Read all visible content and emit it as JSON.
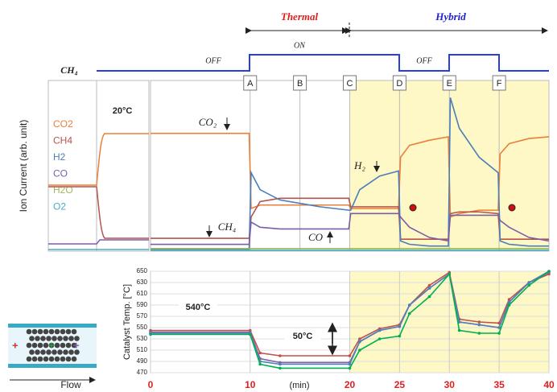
{
  "header": {
    "thermal": "Thermal",
    "hybrid": "Hybrid",
    "ch4_label": "CH₄",
    "ch4_states": [
      "OFF",
      "ON",
      "OFF"
    ]
  },
  "chart_data": [
    {
      "type": "line",
      "y_label": "Ion Current  (arb. unit)",
      "xlim": [
        0,
        40
      ],
      "ylim": [
        0,
        100
      ],
      "x": [
        0,
        9.9,
        10.1,
        11,
        13,
        17,
        19.9,
        20.1,
        21,
        23,
        24.9,
        25.1,
        26,
        28,
        29.9,
        30.1,
        31,
        33,
        34.9,
        35.1,
        36,
        38,
        40
      ],
      "series": [
        {
          "name": "CO2",
          "color": "#e8803a",
          "values": [
            69,
            69,
            25,
            27,
            27,
            27,
            27,
            25,
            25,
            25,
            25,
            55,
            62,
            65,
            67,
            20,
            22,
            24,
            24,
            57,
            63,
            66,
            67
          ]
        },
        {
          "name": "CH4",
          "color": "#b5534c",
          "values": [
            7.5,
            7.5,
            20,
            29,
            31,
            31,
            31,
            26,
            26,
            26,
            26,
            7,
            7,
            7,
            7,
            22,
            23,
            23,
            22,
            7,
            7,
            7,
            7
          ]
        },
        {
          "name": "H2",
          "color": "#4a7ebb",
          "values": [
            1,
            1,
            46,
            36,
            30,
            26,
            24,
            24,
            36,
            44,
            47,
            6,
            4,
            3,
            3,
            90,
            72,
            55,
            46,
            6,
            4,
            3,
            3
          ]
        },
        {
          "name": "CO",
          "color": "#7b5ea7",
          "values": [
            4,
            4,
            17,
            14,
            13,
            13,
            13,
            22,
            22,
            22,
            22,
            20,
            14,
            8,
            6,
            21,
            21,
            21,
            21,
            18,
            14,
            8,
            6
          ]
        },
        {
          "name": "H2O",
          "color": "#9bbb59",
          "values": [
            1.5,
            1.5,
            1.5,
            1.5,
            1.5,
            1.5,
            1.5,
            1.5,
            1.5,
            1.5,
            1.5,
            1.5,
            1.5,
            1.5,
            1.5,
            1.5,
            1.5,
            1.5,
            1.5,
            1.5,
            1.5,
            1.5,
            1.5
          ]
        },
        {
          "name": "O2",
          "color": "#4bacc6",
          "values": [
            0.5,
            0.5,
            0.5,
            0.5,
            0.5,
            0.5,
            0.5,
            0.5,
            0.5,
            0.5,
            0.5,
            0.5,
            0.5,
            0.5,
            0.5,
            0.5,
            0.5,
            0.5,
            0.5,
            0.5,
            0.5,
            0.5,
            0.5
          ]
        }
      ],
      "markers": {
        "labels": [
          "A",
          "B",
          "C",
          "D",
          "E",
          "F"
        ],
        "x": [
          10,
          15,
          20,
          25,
          30,
          35
        ]
      },
      "highlight_x": [
        20,
        40
      ],
      "pre_phase_label": "20°C",
      "annotations": [
        "CO₂",
        "CH₄",
        "H₂",
        "CO"
      ]
    },
    {
      "type": "line",
      "y_label": "Catalyst Temp. [°C]",
      "x_label": "(min)",
      "xlim": [
        0,
        40
      ],
      "ylim": [
        470,
        650
      ],
      "xticks": [
        0,
        10,
        20,
        25,
        30,
        35,
        40
      ],
      "yticks": [
        470,
        490,
        510,
        530,
        550,
        570,
        590,
        610,
        630,
        650
      ],
      "grid": true,
      "x": [
        0,
        10,
        11,
        13,
        20,
        21,
        23,
        25,
        26,
        28,
        30,
        31,
        33,
        35,
        36,
        38,
        40
      ],
      "series": [
        {
          "color": "#c0504d",
          "values": [
            545,
            545,
            505,
            500,
            500,
            530,
            548,
            555,
            590,
            625,
            648,
            565,
            560,
            558,
            600,
            630,
            645
          ]
        },
        {
          "color": "#8064a2",
          "values": [
            542,
            542,
            495,
            488,
            488,
            525,
            545,
            552,
            590,
            620,
            645,
            560,
            555,
            550,
            595,
            630,
            648
          ]
        },
        {
          "color": "#4f81bd",
          "values": [
            540,
            540,
            490,
            485,
            485,
            525,
            545,
            552,
            590,
            620,
            645,
            560,
            555,
            550,
            595,
            630,
            650
          ]
        },
        {
          "color": "#00b050",
          "values": [
            538,
            538,
            485,
            478,
            478,
            510,
            530,
            535,
            575,
            605,
            645,
            545,
            540,
            540,
            590,
            625,
            650
          ]
        }
      ],
      "highlight_x": [
        20,
        40
      ],
      "annotations": [
        "540°C",
        "50°C"
      ]
    }
  ],
  "inset": {
    "label": "Flow"
  }
}
